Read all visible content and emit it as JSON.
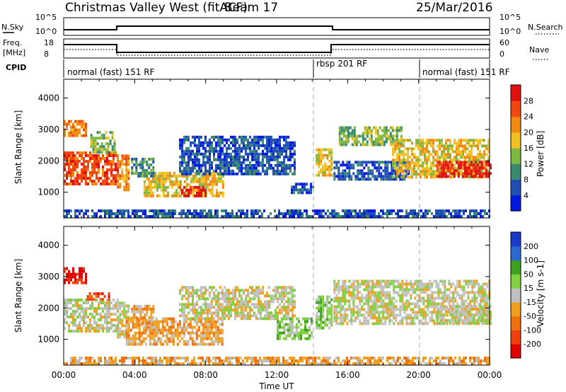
{
  "header": {
    "station": "Christmas Valley West (fitACF)",
    "beam": "Beam 17",
    "date": "25/Mar/2016"
  },
  "strips": {
    "nsky_label": "N.Sky",
    "nsearch_label": "N.Search",
    "nsky_ticks": [
      "10^5",
      "10^0"
    ],
    "nsearch_ticks": [
      "10^5",
      "10^0"
    ],
    "freq_label_1": "Freq.",
    "freq_label_2": "[MHz]",
    "freq_ticks": [
      "18",
      "8"
    ],
    "nave_label": "Nave",
    "nave_ticks": [
      "60",
      "0"
    ],
    "cpid_label": "CPID",
    "cpid_segments": [
      {
        "label": "normal (fast) 151 RF",
        "start_h": 0,
        "end_h": 14
      },
      {
        "label": "rbsp 201 RF",
        "start_h": 14,
        "end_h": 20
      },
      {
        "label": "normal (fast) 151 RF",
        "start_h": 20,
        "end_h": 24
      }
    ]
  },
  "colors": {
    "power": [
      "#0018e0",
      "#1f4fb0",
      "#3a8a70",
      "#7fb840",
      "#f0c020",
      "#f08a10",
      "#f04810",
      "#e01010"
    ],
    "velocity": [
      "#1a3ac8",
      "#2a6ad0",
      "#40a020",
      "#80d040",
      "#c0c0c0",
      "#f0a020",
      "#f07010",
      "#f04010",
      "#e00000"
    ],
    "ground_scatter": "#c0c0c0",
    "cpid_divider": "#aaaaaa"
  },
  "chart_data": [
    {
      "type": "heatmap",
      "title": "Power",
      "xlabel": "Time UT",
      "ylabel": "Slant Range [km]",
      "x_ticks": [
        "00:00",
        "04:00",
        "08:00",
        "12:00",
        "16:00",
        "20:00",
        "00:00"
      ],
      "y_ticks": [
        "1000",
        "2000",
        "3000",
        "4000"
      ],
      "xlim": [
        0,
        24
      ],
      "ylim": [
        180,
        4600
      ],
      "colorbar_label": "Power [dB]",
      "colorbar_ticks": [
        "28",
        "24",
        "20",
        "16",
        "12",
        "8",
        "4"
      ],
      "regions": [
        {
          "t0": 0.0,
          "t1": 3.1,
          "r0": 1300,
          "r1": 2300,
          "level": 6
        },
        {
          "t0": 0.0,
          "t1": 1.3,
          "r0": 2800,
          "r1": 3300,
          "level": 5
        },
        {
          "t0": 1.5,
          "t1": 2.9,
          "r0": 2300,
          "r1": 2950,
          "level": 3
        },
        {
          "t0": 3.0,
          "t1": 3.6,
          "r0": 1050,
          "r1": 2200,
          "level": 5
        },
        {
          "t0": 4.5,
          "t1": 9.0,
          "r0": 850,
          "r1": 1650,
          "level": 4
        },
        {
          "t0": 6.5,
          "t1": 8.0,
          "r0": 850,
          "r1": 1200,
          "level": 7
        },
        {
          "t0": 3.8,
          "t1": 5.0,
          "r0": 1500,
          "r1": 2100,
          "level": 2
        },
        {
          "t0": 6.5,
          "t1": 13.0,
          "r0": 1600,
          "r1": 2800,
          "level": 1
        },
        {
          "t0": 12.8,
          "t1": 14.0,
          "r0": 1000,
          "r1": 1300,
          "level": 1
        },
        {
          "t0": 14.2,
          "t1": 15.1,
          "r0": 1500,
          "r1": 2400,
          "level": 4
        },
        {
          "t0": 15.2,
          "t1": 19.5,
          "r0": 1400,
          "r1": 2000,
          "level": 1
        },
        {
          "t0": 15.5,
          "t1": 19.0,
          "r0": 2500,
          "r1": 3100,
          "level": 3
        },
        {
          "t0": 18.5,
          "t1": 24.0,
          "r0": 1450,
          "r1": 2700,
          "level": 4
        },
        {
          "t0": 21.0,
          "t1": 24.0,
          "r0": 1500,
          "r1": 2000,
          "level": 7
        },
        {
          "t0": 0.0,
          "t1": 24.0,
          "r0": 200,
          "r1": 450,
          "level": 1
        }
      ]
    },
    {
      "type": "heatmap",
      "title": "Velocity",
      "xlabel": "Time UT",
      "ylabel": "Slant Range [km]",
      "x_ticks": [
        "00:00",
        "04:00",
        "08:00",
        "12:00",
        "16:00",
        "20:00",
        "00:00"
      ],
      "y_ticks": [
        "1000",
        "2000",
        "3000",
        "4000"
      ],
      "xlim": [
        0,
        24
      ],
      "ylim": [
        180,
        4600
      ],
      "colorbar_label": "Velocity [m s-1]",
      "colorbar_ticks": [
        "200",
        "100",
        "50",
        "15",
        "-15",
        "-50",
        "-100",
        "-200"
      ],
      "regions": [
        {
          "t0": 0.0,
          "t1": 3.1,
          "r0": 1300,
          "r1": 2300,
          "level": 4
        },
        {
          "t0": 0.0,
          "t1": 1.2,
          "r0": 2800,
          "r1": 3300,
          "level": 8
        },
        {
          "t0": 1.3,
          "t1": 2.5,
          "r0": 2300,
          "r1": 2500,
          "level": 7
        },
        {
          "t0": 3.0,
          "t1": 3.6,
          "r0": 1050,
          "r1": 2200,
          "level": 4
        },
        {
          "t0": 3.5,
          "t1": 9.0,
          "r0": 850,
          "r1": 1700,
          "level": 5
        },
        {
          "t0": 3.8,
          "t1": 5.0,
          "r0": 1500,
          "r1": 2100,
          "level": 5
        },
        {
          "t0": 6.5,
          "t1": 13.0,
          "r0": 1700,
          "r1": 2700,
          "level": 4
        },
        {
          "t0": 12.0,
          "t1": 14.0,
          "r0": 1000,
          "r1": 1700,
          "level": 3
        },
        {
          "t0": 14.2,
          "t1": 15.1,
          "r0": 1400,
          "r1": 2400,
          "level": 3
        },
        {
          "t0": 15.2,
          "t1": 24.0,
          "r0": 1500,
          "r1": 2900,
          "level": 4
        },
        {
          "t0": 21.0,
          "t1": 24.0,
          "r0": 1500,
          "r1": 2100,
          "level": 4
        },
        {
          "t0": 0.0,
          "t1": 24.0,
          "r0": 200,
          "r1": 450,
          "level": 5
        }
      ]
    }
  ]
}
